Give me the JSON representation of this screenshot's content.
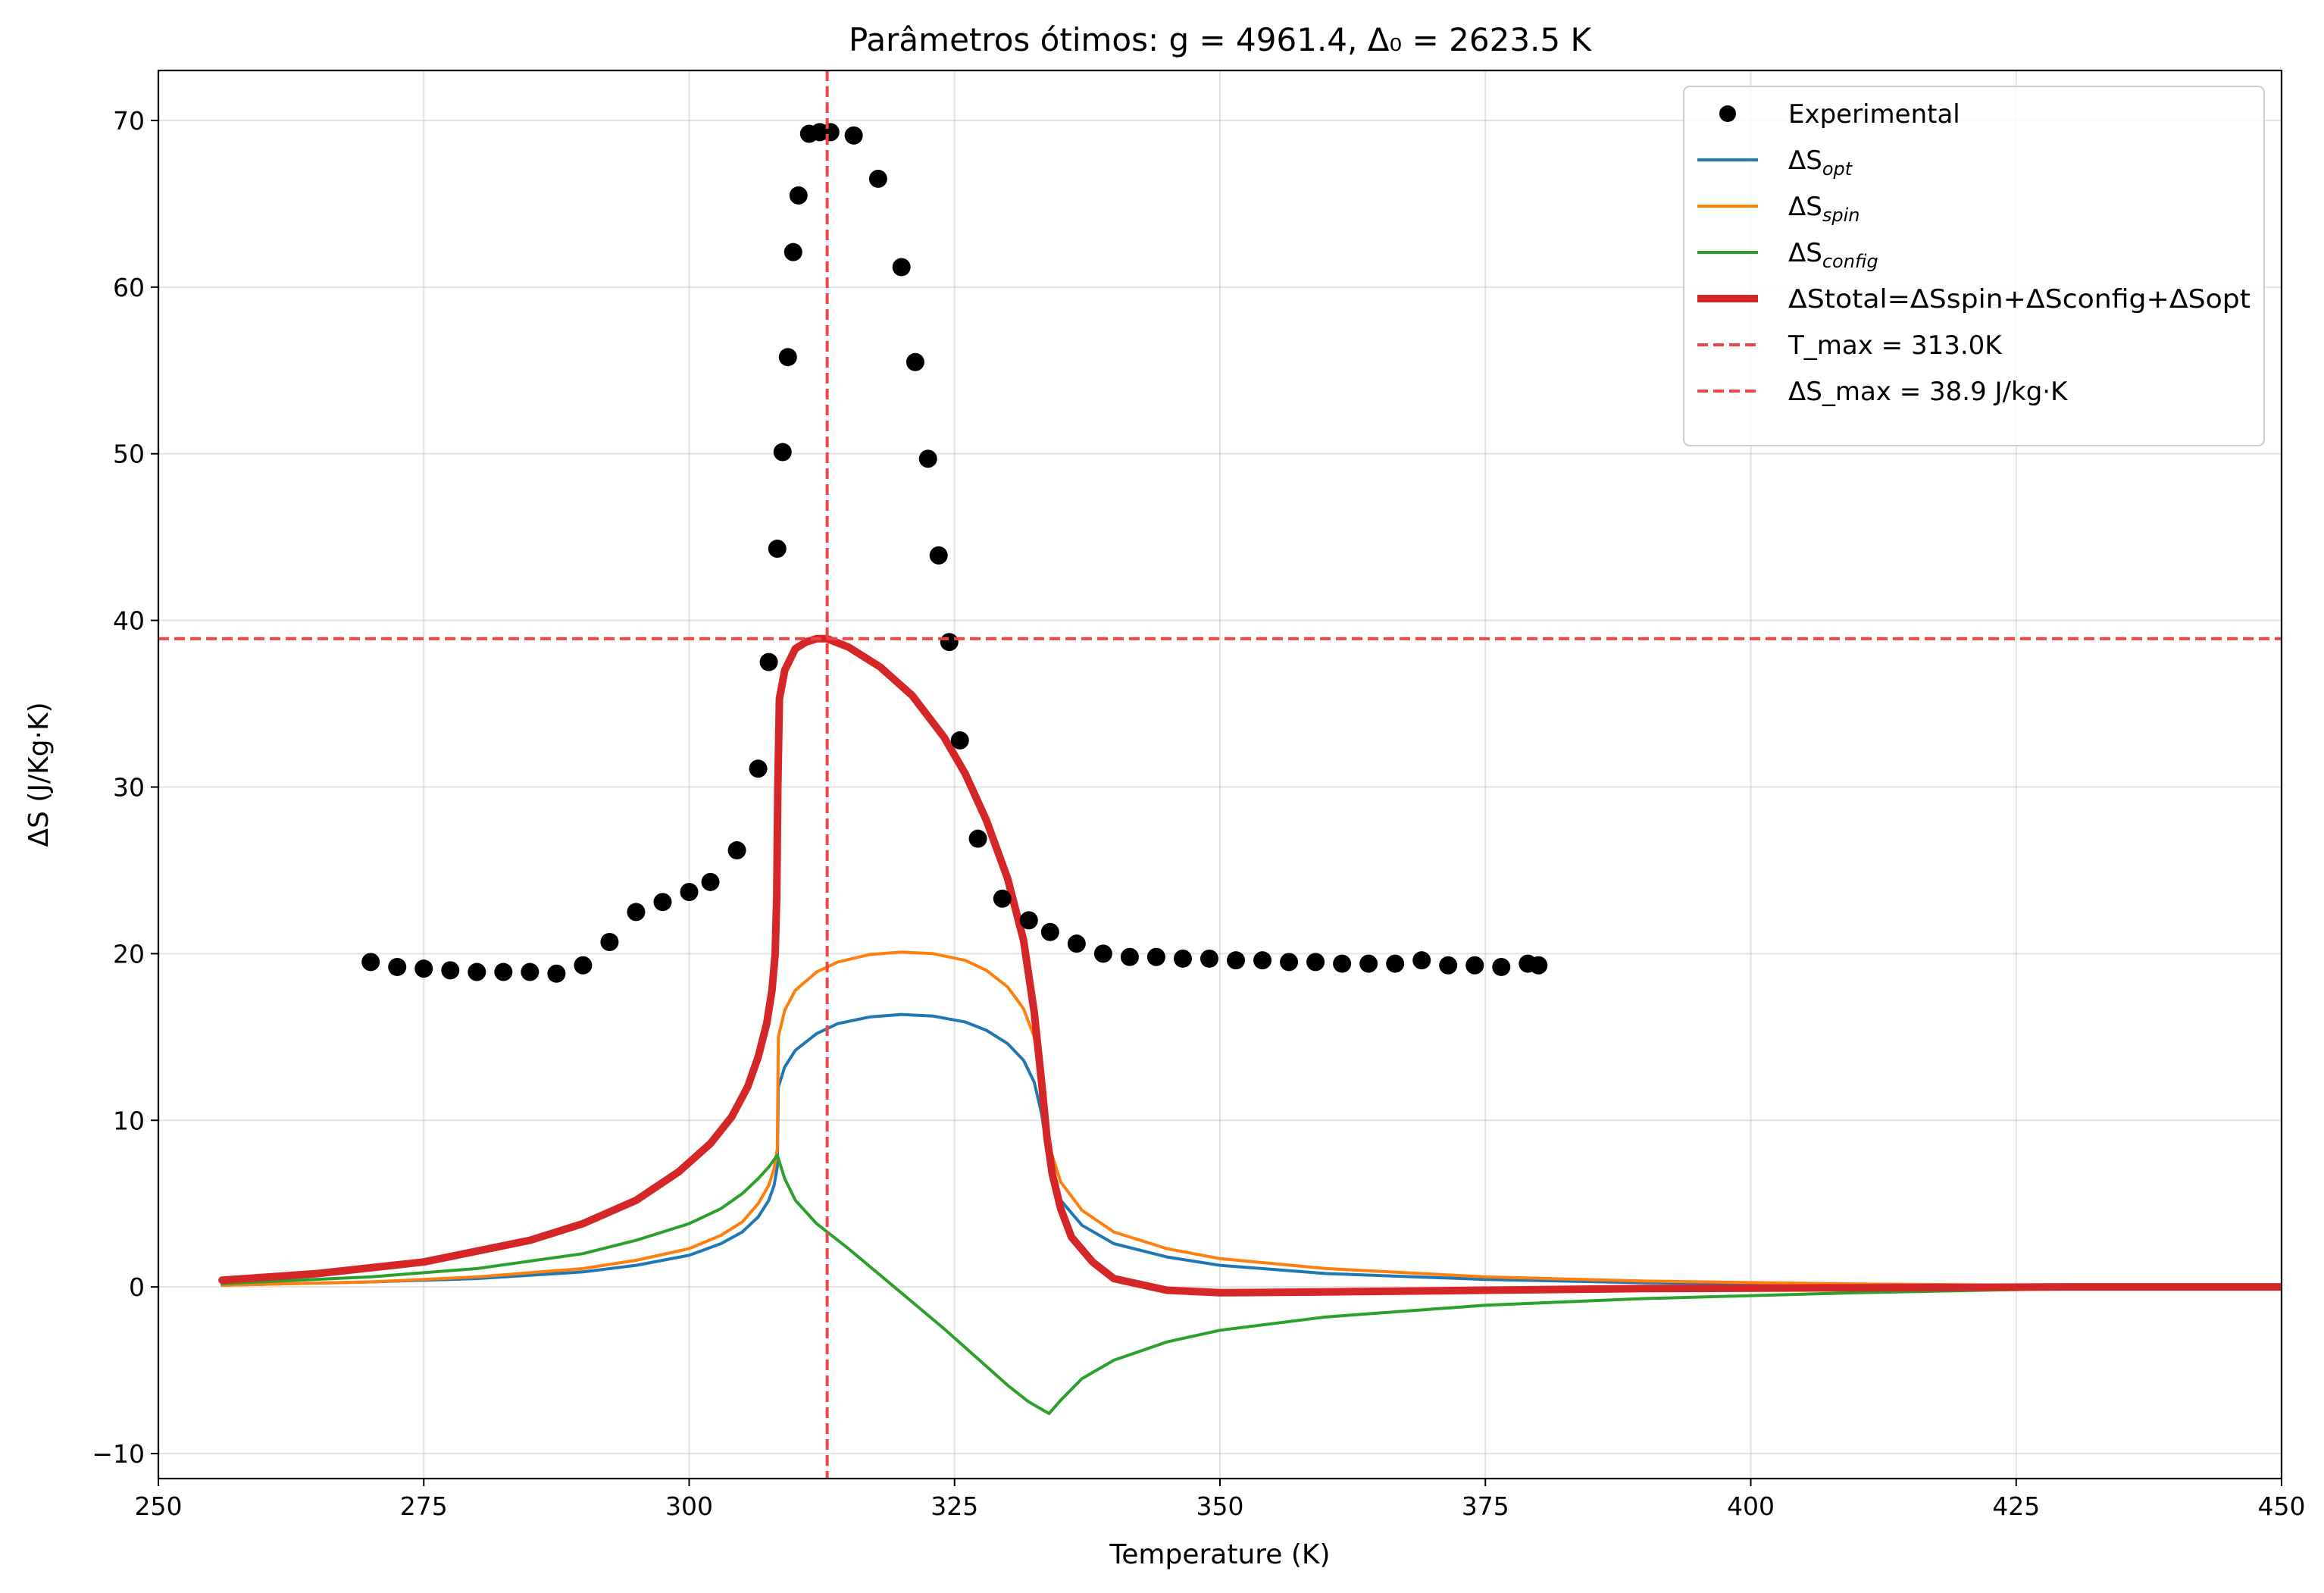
{
  "chart_data": {
    "type": "scatter",
    "title": "Parâmetros ótimos: g = 4961.4, Δ₀ = 2623.5 K",
    "xlabel": "Temperature (K)",
    "ylabel": "ΔS (J/Kg·K)",
    "xlim": [
      250,
      450
    ],
    "ylim": [
      -11.5,
      73
    ],
    "xticks": [
      250,
      275,
      300,
      325,
      350,
      375,
      400,
      425,
      450
    ],
    "yticks": [
      -10,
      0,
      10,
      20,
      30,
      40,
      50,
      60,
      70
    ],
    "grid": true,
    "legend_position": "top-right",
    "colors": {
      "experimental": "#000000",
      "opt": "#1f77b4",
      "spin": "#ff7f0e",
      "config": "#2ca02c",
      "total": "#d62728",
      "ref": "#ef4444"
    },
    "legend": [
      {
        "key": "experimental",
        "label": "Experimental"
      },
      {
        "key": "opt",
        "base": "ΔS",
        "sub": "opt"
      },
      {
        "key": "spin",
        "base": "ΔS",
        "sub": "spin"
      },
      {
        "key": "config",
        "base": "ΔS",
        "sub": "config"
      },
      {
        "key": "total",
        "label": "ΔStotal=ΔSspin+ΔSconfig+ΔSopt"
      },
      {
        "key": "tmax",
        "label": "T_max = 313.0K"
      },
      {
        "key": "smax",
        "label": "ΔS_max = 38.9 J/kg·K"
      }
    ],
    "reference_lines": {
      "vertical_x": 313.0,
      "horizontal_y": 38.9
    },
    "experimental": {
      "x": [
        270,
        272.5,
        275,
        277.5,
        280,
        282.5,
        285,
        287.5,
        290,
        292.5,
        295,
        297.5,
        300,
        302,
        304.5,
        306.5,
        307.5,
        308.3,
        308.8,
        309.3,
        309.8,
        310.3,
        311.3,
        312.3,
        313.3,
        315.5,
        317.8,
        320,
        321.3,
        322.5,
        323.5,
        324.5,
        325.5,
        327.2,
        329.5,
        332,
        334,
        336.5,
        339,
        341.5,
        344,
        346.5,
        349,
        351.5,
        354,
        356.5,
        359,
        361.5,
        364,
        366.5,
        369,
        371.5,
        374,
        376.5,
        379,
        380
      ],
      "y": [
        19.5,
        19.2,
        19.1,
        19.0,
        18.9,
        18.9,
        18.9,
        18.8,
        19.3,
        20.7,
        22.5,
        23.1,
        23.7,
        24.3,
        26.2,
        31.1,
        37.5,
        44.3,
        50.1,
        55.8,
        62.1,
        65.5,
        69.2,
        69.3,
        69.3,
        69.1,
        66.5,
        61.2,
        55.5,
        49.7,
        43.9,
        38.7,
        32.8,
        26.9,
        23.3,
        22.0,
        21.3,
        20.6,
        20.0,
        19.8,
        19.8,
        19.7,
        19.7,
        19.6,
        19.6,
        19.5,
        19.5,
        19.4,
        19.4,
        19.4,
        19.6,
        19.3,
        19.3,
        19.2,
        19.4,
        19.3
      ]
    },
    "series": [
      {
        "key": "opt",
        "x": [
          256,
          270,
          280,
          290,
          295,
          300,
          303,
          305,
          306.5,
          307.5,
          308,
          308.3,
          308.4,
          309,
          310,
          312,
          314,
          317,
          320,
          323,
          326,
          328,
          330,
          331.5,
          332.5,
          333.2,
          333.6,
          334,
          335,
          337,
          340,
          345,
          350,
          360,
          375,
          390,
          410,
          430,
          450
        ],
        "y": [
          0.1,
          0.3,
          0.5,
          0.9,
          1.3,
          1.9,
          2.6,
          3.3,
          4.2,
          5.2,
          6.1,
          7.2,
          12.0,
          13.2,
          14.2,
          15.2,
          15.8,
          16.2,
          16.35,
          16.25,
          15.9,
          15.4,
          14.6,
          13.6,
          12.3,
          10.4,
          8.7,
          7.3,
          5.2,
          3.7,
          2.6,
          1.8,
          1.3,
          0.8,
          0.45,
          0.25,
          0.12,
          0.05,
          0.0
        ]
      },
      {
        "key": "spin",
        "x": [
          256,
          270,
          280,
          290,
          295,
          300,
          303,
          305,
          306.5,
          307.5,
          308,
          308.3,
          308.4,
          309,
          310,
          312,
          314,
          317,
          320,
          323,
          326,
          328,
          330,
          331.5,
          332.5,
          333.2,
          333.6,
          334,
          335,
          337,
          340,
          345,
          350,
          360,
          375,
          390,
          410,
          430,
          450
        ],
        "y": [
          0.1,
          0.3,
          0.6,
          1.1,
          1.6,
          2.3,
          3.1,
          3.9,
          5.0,
          6.1,
          7.1,
          8.3,
          15.0,
          16.6,
          17.8,
          18.9,
          19.5,
          19.95,
          20.1,
          20.0,
          19.6,
          19.0,
          18.0,
          16.7,
          15.0,
          12.5,
          10.3,
          8.3,
          6.3,
          4.6,
          3.3,
          2.3,
          1.7,
          1.1,
          0.6,
          0.35,
          0.18,
          0.08,
          0.0
        ]
      },
      {
        "key": "config",
        "x": [
          256,
          270,
          280,
          290,
          295,
          300,
          303,
          305,
          306.5,
          307.5,
          308.3,
          309,
          310,
          312,
          315,
          318,
          321,
          324,
          327,
          330,
          332,
          333.9,
          335,
          337,
          340,
          345,
          350,
          360,
          375,
          390,
          410,
          430,
          450
        ],
        "y": [
          0.2,
          0.6,
          1.1,
          2.0,
          2.8,
          3.8,
          4.7,
          5.6,
          6.5,
          7.2,
          7.9,
          6.5,
          5.2,
          3.8,
          2.3,
          0.7,
          -0.9,
          -2.5,
          -4.2,
          -5.9,
          -6.9,
          -7.6,
          -6.8,
          -5.5,
          -4.4,
          -3.3,
          -2.6,
          -1.8,
          -1.1,
          -0.7,
          -0.35,
          -0.1,
          0.0
        ]
      },
      {
        "key": "total",
        "x": [
          256,
          265,
          275,
          285,
          290,
          295,
          299,
          302,
          304,
          305.5,
          306.5,
          307.3,
          307.8,
          308.1,
          308.25,
          308.35,
          308.5,
          309,
          310,
          311,
          312,
          313,
          315,
          318,
          321,
          324,
          326,
          328,
          330,
          331.5,
          332.5,
          333.2,
          333.7,
          334.2,
          335,
          336,
          338,
          340,
          345,
          350,
          360,
          375,
          390,
          410,
          430,
          450
        ],
        "y": [
          0.4,
          0.8,
          1.5,
          2.8,
          3.8,
          5.2,
          6.9,
          8.6,
          10.2,
          12.0,
          13.8,
          15.8,
          17.8,
          20.0,
          23.5,
          30.0,
          35.3,
          37.0,
          38.3,
          38.7,
          38.9,
          38.9,
          38.4,
          37.2,
          35.5,
          33.0,
          30.8,
          28.0,
          24.5,
          20.8,
          16.5,
          12.3,
          9.0,
          6.8,
          4.7,
          3.0,
          1.5,
          0.5,
          -0.2,
          -0.35,
          -0.3,
          -0.2,
          -0.1,
          -0.05,
          0.0,
          0.0
        ]
      }
    ]
  }
}
